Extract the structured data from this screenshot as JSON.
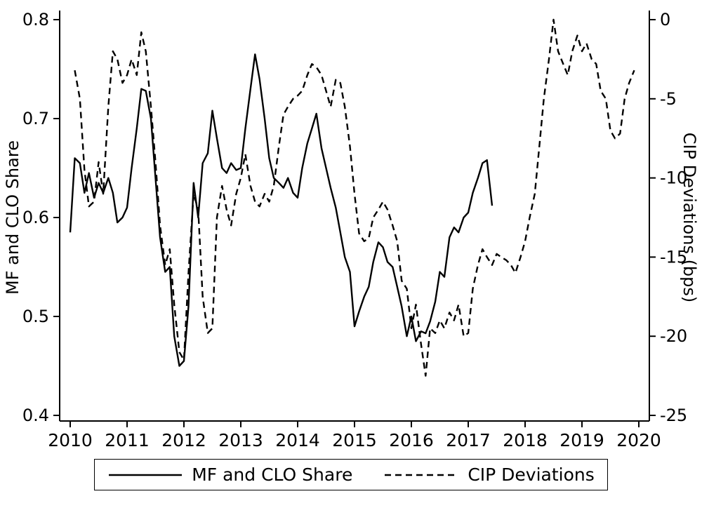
{
  "chart_data": {
    "type": "line",
    "title": "",
    "ylabel_left": "MF and CLO Share",
    "ylabel_right": "CIP Deviations (bps)",
    "x_ticks": [
      2010,
      2011,
      2012,
      2013,
      2014,
      2015,
      2016,
      2017,
      2018,
      2019,
      2020
    ],
    "left_axis": {
      "min": 0.4,
      "max": 0.8,
      "ticks": [
        0.8,
        0.7,
        0.6,
        0.5,
        0.4
      ]
    },
    "right_axis": {
      "min": -25,
      "max": 0,
      "ticks": [
        0,
        -5,
        -10,
        -15,
        -20,
        -25
      ]
    },
    "grid": false,
    "legend_position": "bottom",
    "line_color": "#000000",
    "series": [
      {
        "name": "MF and CLO Share",
        "axis": "left",
        "style": "solid",
        "points": [
          [
            2010.0,
            0.585
          ],
          [
            2010.08,
            0.66
          ],
          [
            2010.17,
            0.655
          ],
          [
            2010.25,
            0.625
          ],
          [
            2010.33,
            0.645
          ],
          [
            2010.42,
            0.62
          ],
          [
            2010.5,
            0.635
          ],
          [
            2010.58,
            0.625
          ],
          [
            2010.67,
            0.64
          ],
          [
            2010.75,
            0.625
          ],
          [
            2010.83,
            0.595
          ],
          [
            2010.92,
            0.6
          ],
          [
            2011.0,
            0.61
          ],
          [
            2011.08,
            0.65
          ],
          [
            2011.17,
            0.69
          ],
          [
            2011.25,
            0.73
          ],
          [
            2011.33,
            0.728
          ],
          [
            2011.42,
            0.7
          ],
          [
            2011.5,
            0.64
          ],
          [
            2011.58,
            0.58
          ],
          [
            2011.67,
            0.545
          ],
          [
            2011.75,
            0.55
          ],
          [
            2011.83,
            0.48
          ],
          [
            2011.92,
            0.45
          ],
          [
            2012.0,
            0.455
          ],
          [
            2012.08,
            0.51
          ],
          [
            2012.17,
            0.635
          ],
          [
            2012.25,
            0.6
          ],
          [
            2012.33,
            0.655
          ],
          [
            2012.42,
            0.665
          ],
          [
            2012.5,
            0.708
          ],
          [
            2012.58,
            0.68
          ],
          [
            2012.67,
            0.65
          ],
          [
            2012.75,
            0.645
          ],
          [
            2012.83,
            0.655
          ],
          [
            2012.92,
            0.648
          ],
          [
            2013.0,
            0.65
          ],
          [
            2013.08,
            0.69
          ],
          [
            2013.17,
            0.73
          ],
          [
            2013.25,
            0.765
          ],
          [
            2013.33,
            0.74
          ],
          [
            2013.42,
            0.7
          ],
          [
            2013.5,
            0.66
          ],
          [
            2013.58,
            0.64
          ],
          [
            2013.67,
            0.635
          ],
          [
            2013.75,
            0.63
          ],
          [
            2013.83,
            0.64
          ],
          [
            2013.92,
            0.625
          ],
          [
            2014.0,
            0.62
          ],
          [
            2014.08,
            0.65
          ],
          [
            2014.17,
            0.675
          ],
          [
            2014.25,
            0.69
          ],
          [
            2014.33,
            0.705
          ],
          [
            2014.42,
            0.67
          ],
          [
            2014.5,
            0.65
          ],
          [
            2014.58,
            0.63
          ],
          [
            2014.67,
            0.61
          ],
          [
            2014.75,
            0.585
          ],
          [
            2014.83,
            0.56
          ],
          [
            2014.92,
            0.545
          ],
          [
            2015.0,
            0.49
          ],
          [
            2015.08,
            0.505
          ],
          [
            2015.17,
            0.52
          ],
          [
            2015.25,
            0.53
          ],
          [
            2015.33,
            0.555
          ],
          [
            2015.42,
            0.575
          ],
          [
            2015.5,
            0.57
          ],
          [
            2015.58,
            0.555
          ],
          [
            2015.67,
            0.55
          ],
          [
            2015.75,
            0.53
          ],
          [
            2015.83,
            0.51
          ],
          [
            2015.92,
            0.48
          ],
          [
            2016.0,
            0.5
          ],
          [
            2016.08,
            0.475
          ],
          [
            2016.17,
            0.485
          ],
          [
            2016.25,
            0.483
          ],
          [
            2016.33,
            0.495
          ],
          [
            2016.42,
            0.515
          ],
          [
            2016.5,
            0.545
          ],
          [
            2016.58,
            0.54
          ],
          [
            2016.67,
            0.58
          ],
          [
            2016.75,
            0.59
          ],
          [
            2016.83,
            0.585
          ],
          [
            2016.92,
            0.6
          ],
          [
            2017.0,
            0.605
          ],
          [
            2017.08,
            0.625
          ],
          [
            2017.17,
            0.64
          ],
          [
            2017.25,
            0.655
          ],
          [
            2017.33,
            0.658
          ],
          [
            2017.42,
            0.612
          ]
        ]
      },
      {
        "name": "CIP Deviations",
        "axis": "right",
        "style": "dashed",
        "points": [
          [
            2010.08,
            -3.2
          ],
          [
            2010.17,
            -5.0
          ],
          [
            2010.25,
            -9.5
          ],
          [
            2010.33,
            -11.8
          ],
          [
            2010.42,
            -11.5
          ],
          [
            2010.5,
            -9.0
          ],
          [
            2010.58,
            -11.0
          ],
          [
            2010.67,
            -5.5
          ],
          [
            2010.75,
            -2.0
          ],
          [
            2010.83,
            -2.5
          ],
          [
            2010.92,
            -4.0
          ],
          [
            2011.0,
            -3.5
          ],
          [
            2011.08,
            -2.5
          ],
          [
            2011.17,
            -3.5
          ],
          [
            2011.25,
            -0.8
          ],
          [
            2011.33,
            -2.0
          ],
          [
            2011.42,
            -5.5
          ],
          [
            2011.5,
            -9.0
          ],
          [
            2011.58,
            -13.0
          ],
          [
            2011.67,
            -15.5
          ],
          [
            2011.75,
            -14.5
          ],
          [
            2011.83,
            -18.0
          ],
          [
            2011.92,
            -21.0
          ],
          [
            2012.0,
            -21.5
          ],
          [
            2012.08,
            -16.0
          ],
          [
            2012.17,
            -11.0
          ],
          [
            2012.25,
            -12.0
          ],
          [
            2012.33,
            -17.5
          ],
          [
            2012.42,
            -19.8
          ],
          [
            2012.5,
            -19.5
          ],
          [
            2012.58,
            -12.5
          ],
          [
            2012.67,
            -10.5
          ],
          [
            2012.75,
            -12.0
          ],
          [
            2012.83,
            -13.0
          ],
          [
            2012.92,
            -11.0
          ],
          [
            2013.0,
            -10.0
          ],
          [
            2013.08,
            -8.5
          ],
          [
            2013.17,
            -10.5
          ],
          [
            2013.25,
            -11.5
          ],
          [
            2013.33,
            -11.8
          ],
          [
            2013.42,
            -11.0
          ],
          [
            2013.5,
            -11.5
          ],
          [
            2013.58,
            -10.5
          ],
          [
            2013.67,
            -8.0
          ],
          [
            2013.75,
            -6.0
          ],
          [
            2013.83,
            -5.5
          ],
          [
            2013.92,
            -5.0
          ],
          [
            2014.0,
            -4.8
          ],
          [
            2014.08,
            -4.5
          ],
          [
            2014.17,
            -3.5
          ],
          [
            2014.25,
            -2.8
          ],
          [
            2014.33,
            -3.0
          ],
          [
            2014.42,
            -3.5
          ],
          [
            2014.5,
            -4.5
          ],
          [
            2014.58,
            -5.5
          ],
          [
            2014.67,
            -3.8
          ],
          [
            2014.75,
            -4.0
          ],
          [
            2014.83,
            -5.5
          ],
          [
            2014.92,
            -8.0
          ],
          [
            2015.0,
            -11.0
          ],
          [
            2015.08,
            -13.5
          ],
          [
            2015.17,
            -14.0
          ],
          [
            2015.25,
            -13.8
          ],
          [
            2015.33,
            -12.5
          ],
          [
            2015.42,
            -12.0
          ],
          [
            2015.5,
            -11.5
          ],
          [
            2015.58,
            -12.0
          ],
          [
            2015.67,
            -13.0
          ],
          [
            2015.75,
            -14.0
          ],
          [
            2015.83,
            -16.5
          ],
          [
            2015.92,
            -17.0
          ],
          [
            2016.0,
            -19.5
          ],
          [
            2016.08,
            -18.0
          ],
          [
            2016.17,
            -20.5
          ],
          [
            2016.25,
            -22.5
          ],
          [
            2016.33,
            -19.5
          ],
          [
            2016.42,
            -19.8
          ],
          [
            2016.5,
            -19.0
          ],
          [
            2016.58,
            -19.5
          ],
          [
            2016.67,
            -18.5
          ],
          [
            2016.75,
            -19.0
          ],
          [
            2016.83,
            -18.0
          ],
          [
            2016.92,
            -20.0
          ],
          [
            2017.0,
            -19.8
          ],
          [
            2017.08,
            -17.0
          ],
          [
            2017.17,
            -15.5
          ],
          [
            2017.25,
            -14.5
          ],
          [
            2017.33,
            -15.0
          ],
          [
            2017.42,
            -15.5
          ],
          [
            2017.5,
            -14.8
          ],
          [
            2017.58,
            -15.0
          ],
          [
            2017.67,
            -15.2
          ],
          [
            2017.75,
            -15.5
          ],
          [
            2017.83,
            -16.0
          ],
          [
            2017.92,
            -15.0
          ],
          [
            2018.0,
            -14.0
          ],
          [
            2018.08,
            -12.5
          ],
          [
            2018.17,
            -11.0
          ],
          [
            2018.25,
            -8.0
          ],
          [
            2018.33,
            -5.0
          ],
          [
            2018.42,
            -2.5
          ],
          [
            2018.5,
            0.0
          ],
          [
            2018.58,
            -2.0
          ],
          [
            2018.67,
            -2.8
          ],
          [
            2018.75,
            -3.5
          ],
          [
            2018.83,
            -2.0
          ],
          [
            2018.92,
            -1.0
          ],
          [
            2019.0,
            -2.0
          ],
          [
            2019.08,
            -1.5
          ],
          [
            2019.17,
            -2.5
          ],
          [
            2019.25,
            -2.8
          ],
          [
            2019.33,
            -4.5
          ],
          [
            2019.42,
            -5.0
          ],
          [
            2019.5,
            -7.0
          ],
          [
            2019.58,
            -7.5
          ],
          [
            2019.67,
            -7.2
          ],
          [
            2019.75,
            -5.0
          ],
          [
            2019.83,
            -4.0
          ],
          [
            2019.92,
            -3.2
          ]
        ]
      }
    ]
  },
  "legend": {
    "items": [
      {
        "label": "MF and CLO Share",
        "style": "solid"
      },
      {
        "label": "CIP Deviations",
        "style": "dashed"
      }
    ]
  }
}
